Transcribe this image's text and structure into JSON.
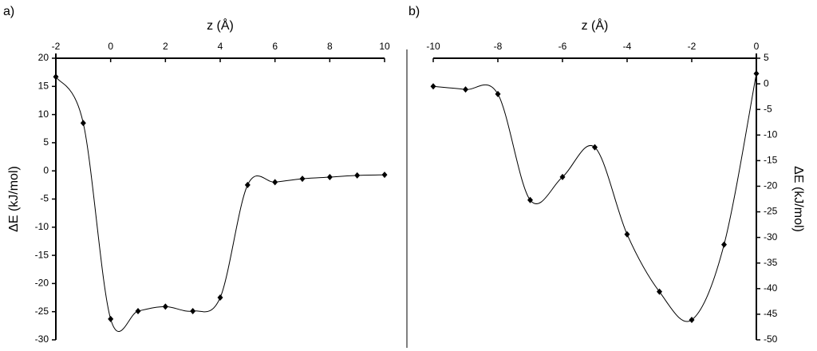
{
  "chart_data": [
    {
      "type": "line",
      "panel_label": "a)",
      "x_label": "z (Å)",
      "y_label": "ΔE (kJ/mol)",
      "y_axis_side": "left",
      "x_axis_side": "top",
      "x": [
        -2,
        -1,
        0,
        1,
        2,
        3,
        4,
        5,
        6,
        7,
        8,
        9,
        10
      ],
      "values": [
        16.7,
        8.5,
        -26.3,
        -24.9,
        -24.1,
        -24.9,
        -22.5,
        -2.5,
        -2.0,
        -1.4,
        -1.1,
        -0.8,
        -0.7
      ],
      "color": "#000000",
      "xlim": [
        -2,
        10
      ],
      "xticks": [
        -2,
        0,
        2,
        4,
        6,
        8,
        10
      ],
      "ylim": [
        -30,
        20
      ],
      "yticks": [
        -30,
        -25,
        -20,
        -15,
        -10,
        -5,
        0,
        5,
        10,
        15,
        20
      ]
    },
    {
      "type": "line",
      "panel_label": "b)",
      "x_label": "z (Å)",
      "y_label": "ΔE (kJ/mol)",
      "y_axis_side": "right",
      "x_axis_side": "top",
      "x": [
        -10,
        -9,
        -8,
        -7,
        -6,
        -5,
        -4,
        -3,
        -2,
        -1,
        0
      ],
      "values": [
        -0.5,
        -1.1,
        -2.0,
        -22.7,
        -18.2,
        -12.4,
        -29.4,
        -40.6,
        -46.1,
        -31.4,
        2
      ],
      "color": "#000000",
      "xlim": [
        -10,
        0
      ],
      "xticks": [
        -10,
        -8,
        -6,
        -4,
        -2,
        0
      ],
      "ylim": [
        -50,
        5
      ],
      "yticks": [
        -50,
        -45,
        -40,
        -35,
        -30,
        -25,
        -20,
        -15,
        -10,
        -5,
        0,
        5
      ]
    }
  ]
}
